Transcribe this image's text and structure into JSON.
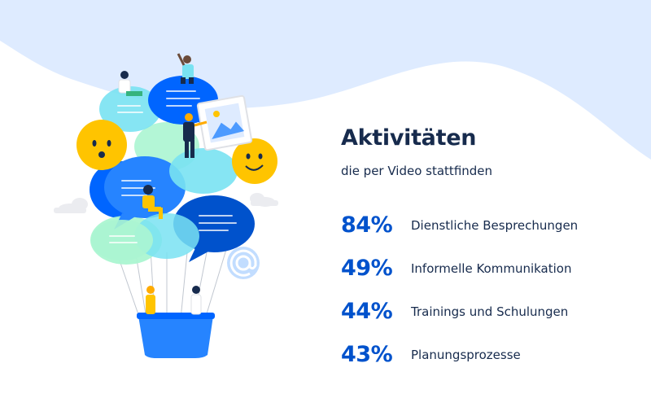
{
  "headline": "Aktivitäten",
  "subhead": "die per Video stattfinden",
  "stats": [
    {
      "value": "84%",
      "label": "Dienstliche Besprechungen"
    },
    {
      "value": "49%",
      "label": "Informelle Kommunikation"
    },
    {
      "value": "44%",
      "label": "Trainings und Schulungen"
    },
    {
      "value": "43%",
      "label": "Planungsprozesse"
    }
  ],
  "colors": {
    "accent": "#0052cc",
    "text": "#172b4d",
    "wave": "#deebff",
    "bubble_blue": "#2684ff",
    "bubble_dark_blue": "#0065ff",
    "bubble_teal": "#79e2f2",
    "bubble_green": "#abf5d1",
    "emoji_yellow": "#ffc400",
    "basket": "#2684ff"
  },
  "illustration": {
    "name": "speech-bubble-hot-air-balloon",
    "icons": [
      "smiley-face-icon",
      "at-sign-icon",
      "image-frame-icon",
      "cloud-icon"
    ]
  }
}
